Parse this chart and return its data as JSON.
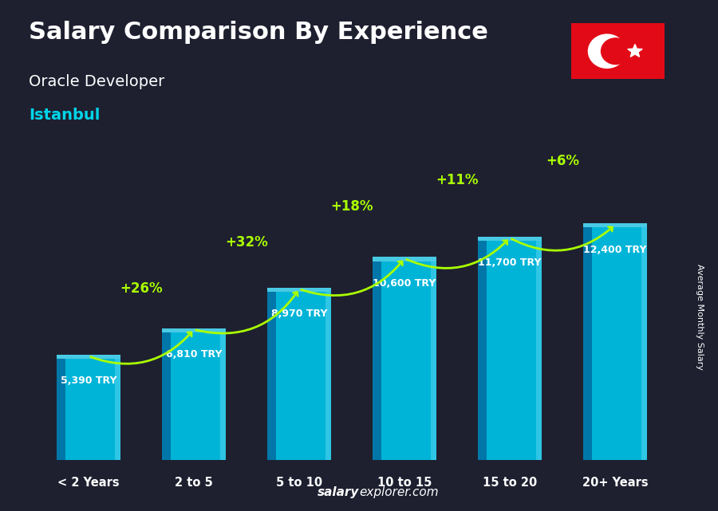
{
  "title": "Salary Comparison By Experience",
  "subtitle1": "Oracle Developer",
  "subtitle2": "Istanbul",
  "categories": [
    "< 2 Years",
    "2 to 5",
    "5 to 10",
    "10 to 15",
    "15 to 20",
    "20+ Years"
  ],
  "values": [
    5390,
    6810,
    8970,
    10600,
    11700,
    12400
  ],
  "value_labels": [
    "5,390 TRY",
    "6,810 TRY",
    "8,970 TRY",
    "10,600 TRY",
    "11,700 TRY",
    "12,400 TRY"
  ],
  "pct_labels": [
    "+26%",
    "+32%",
    "+18%",
    "+11%",
    "+6%"
  ],
  "bar_color_front": "#00b4d8",
  "bar_color_left": "#0077a8",
  "bar_color_top": "#48cae4",
  "bg_color": "#1a1a2e",
  "text_color_white": "#ffffff",
  "text_color_cyan": "#00d4e8",
  "text_color_green": "#aaff00",
  "ylabel": "Average Monthly Salary",
  "footer_salary": "salary",
  "footer_explorer": "explorer",
  "footer_com": ".com",
  "ylim_max": 15000,
  "flag_color": "#e30a17"
}
